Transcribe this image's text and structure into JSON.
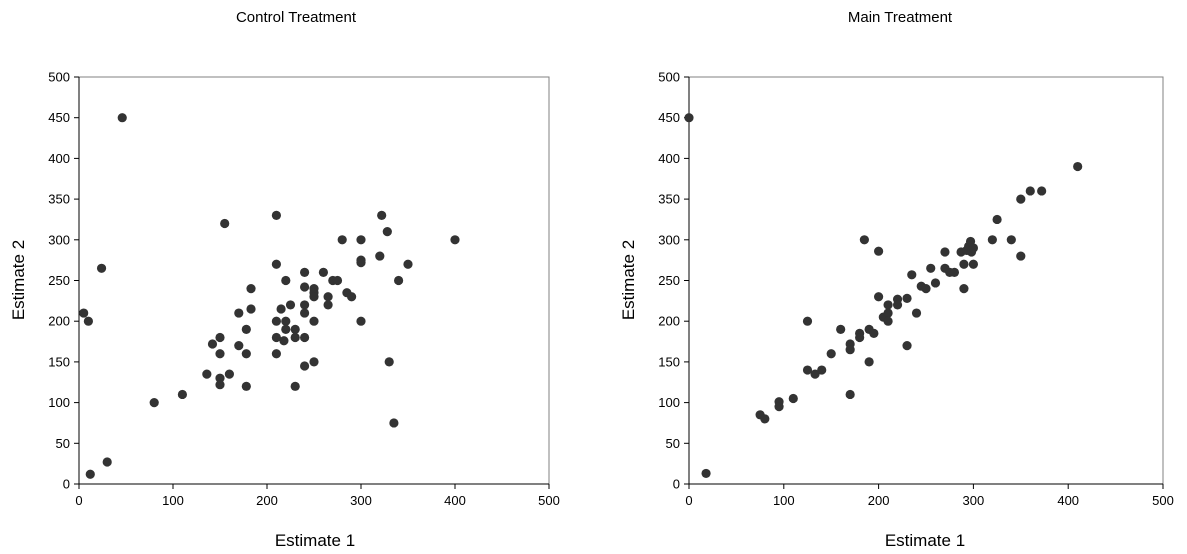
{
  "chart_data": [
    {
      "type": "scatter",
      "title": "Control Treatment",
      "xlabel": "Estimate 1",
      "ylabel": "Estimate 2",
      "xlim": [
        0,
        500
      ],
      "ylim": [
        0,
        500
      ],
      "xticks": [
        0,
        100,
        200,
        300,
        400,
        500
      ],
      "yticks": [
        0,
        50,
        100,
        150,
        200,
        250,
        300,
        350,
        400,
        450,
        500
      ],
      "grid": false,
      "marker_color": "#333333",
      "points": [
        [
          5,
          210
        ],
        [
          10,
          200
        ],
        [
          12,
          12
        ],
        [
          24,
          265
        ],
        [
          30,
          27
        ],
        [
          46,
          450
        ],
        [
          80,
          100
        ],
        [
          110,
          110
        ],
        [
          136,
          135
        ],
        [
          142,
          172
        ],
        [
          150,
          180
        ],
        [
          150,
          160
        ],
        [
          150,
          130
        ],
        [
          150,
          122
        ],
        [
          155,
          320
        ],
        [
          160,
          135
        ],
        [
          170,
          210
        ],
        [
          170,
          170
        ],
        [
          178,
          190
        ],
        [
          178,
          160
        ],
        [
          178,
          120
        ],
        [
          183,
          215
        ],
        [
          183,
          240
        ],
        [
          210,
          330
        ],
        [
          210,
          270
        ],
        [
          210,
          200
        ],
        [
          210,
          180
        ],
        [
          210,
          160
        ],
        [
          215,
          215
        ],
        [
          218,
          176
        ],
        [
          220,
          250
        ],
        [
          220,
          200
        ],
        [
          220,
          190
        ],
        [
          225,
          220
        ],
        [
          230,
          190
        ],
        [
          230,
          180
        ],
        [
          230,
          120
        ],
        [
          240,
          260
        ],
        [
          240,
          242
        ],
        [
          240,
          220
        ],
        [
          240,
          210
        ],
        [
          240,
          180
        ],
        [
          240,
          145
        ],
        [
          250,
          240
        ],
        [
          250,
          235
        ],
        [
          250,
          230
        ],
        [
          250,
          200
        ],
        [
          250,
          150
        ],
        [
          260,
          260
        ],
        [
          265,
          230
        ],
        [
          265,
          220
        ],
        [
          270,
          250
        ],
        [
          275,
          250
        ],
        [
          280,
          300
        ],
        [
          285,
          235
        ],
        [
          290,
          230
        ],
        [
          300,
          300
        ],
        [
          300,
          275
        ],
        [
          300,
          272
        ],
        [
          300,
          200
        ],
        [
          320,
          280
        ],
        [
          322,
          330
        ],
        [
          328,
          310
        ],
        [
          330,
          150
        ],
        [
          335,
          75
        ],
        [
          340,
          250
        ],
        [
          350,
          270
        ],
        [
          400,
          300
        ]
      ]
    },
    {
      "type": "scatter",
      "title": "Main Treatment",
      "xlabel": "Estimate 1",
      "ylabel": "Estimate 2",
      "xlim": [
        0,
        500
      ],
      "ylim": [
        0,
        500
      ],
      "xticks": [
        0,
        100,
        200,
        300,
        400,
        500
      ],
      "yticks": [
        0,
        50,
        100,
        150,
        200,
        250,
        300,
        350,
        400,
        450,
        500
      ],
      "grid": false,
      "marker_color": "#333333",
      "points": [
        [
          0,
          450
        ],
        [
          18,
          13
        ],
        [
          75,
          85
        ],
        [
          80,
          80
        ],
        [
          95,
          101
        ],
        [
          95,
          95
        ],
        [
          110,
          105
        ],
        [
          125,
          200
        ],
        [
          125,
          140
        ],
        [
          133,
          135
        ],
        [
          140,
          140
        ],
        [
          150,
          160
        ],
        [
          160,
          190
        ],
        [
          170,
          172
        ],
        [
          170,
          165
        ],
        [
          170,
          110
        ],
        [
          180,
          185
        ],
        [
          180,
          180
        ],
        [
          185,
          300
        ],
        [
          190,
          190
        ],
        [
          190,
          150
        ],
        [
          195,
          185
        ],
        [
          200,
          286
        ],
        [
          200,
          230
        ],
        [
          205,
          205
        ],
        [
          210,
          220
        ],
        [
          210,
          210
        ],
        [
          210,
          200
        ],
        [
          220,
          227
        ],
        [
          220,
          220
        ],
        [
          230,
          228
        ],
        [
          230,
          170
        ],
        [
          235,
          257
        ],
        [
          240,
          210
        ],
        [
          245,
          243
        ],
        [
          250,
          240
        ],
        [
          255,
          265
        ],
        [
          260,
          247
        ],
        [
          270,
          285
        ],
        [
          270,
          265
        ],
        [
          275,
          260
        ],
        [
          280,
          260
        ],
        [
          287,
          285
        ],
        [
          290,
          270
        ],
        [
          290,
          240
        ],
        [
          293,
          287
        ],
        [
          295,
          292
        ],
        [
          297,
          298
        ],
        [
          298,
          285
        ],
        [
          300,
          290
        ],
        [
          300,
          270
        ],
        [
          320,
          300
        ],
        [
          325,
          325
        ],
        [
          340,
          300
        ],
        [
          350,
          350
        ],
        [
          350,
          280
        ],
        [
          360,
          360
        ],
        [
          372,
          360
        ],
        [
          410,
          390
        ]
      ]
    }
  ]
}
